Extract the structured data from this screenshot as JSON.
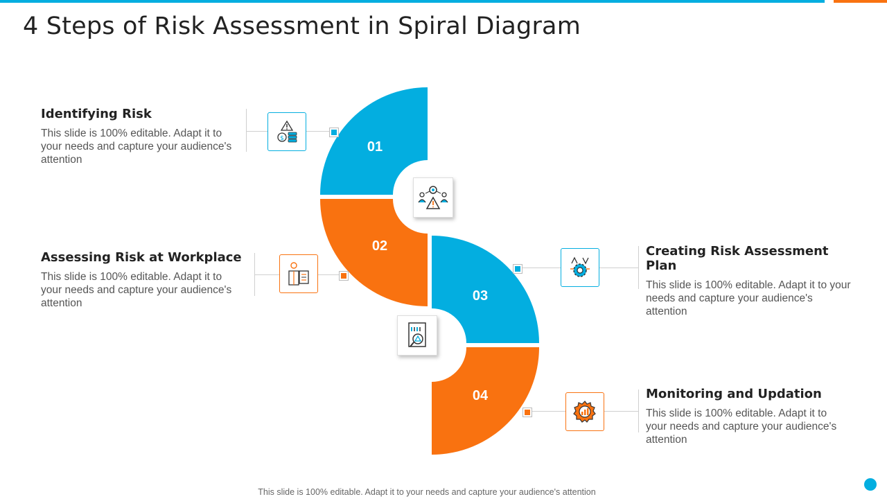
{
  "title": "4 Steps of Risk Assessment in Spiral Diagram",
  "colors": {
    "blue": "#03AEE0",
    "orange": "#F97210",
    "line": "#CFCFCF"
  },
  "steps": [
    {
      "number": "01",
      "color": "blue",
      "icon": "risk-money-icon",
      "title": "Identifying Risk",
      "text": "This slide is 100% editable. Adapt it to your needs and capture your audience's attention"
    },
    {
      "number": "02",
      "color": "orange",
      "icon": "workplace-checklist-icon",
      "title": "Assessing Risk at Workplace",
      "text": "This slide is 100% editable. Adapt it to your needs and capture your audience's attention"
    },
    {
      "number": "03",
      "color": "blue",
      "icon": "gear-arrows-icon",
      "title": "Creating Risk Assessment Plan",
      "text": "This slide is 100% editable. Adapt it to your needs and capture your audience's attention"
    },
    {
      "number": "04",
      "color": "orange",
      "icon": "gear-chart-icon",
      "title": "Monitoring and Updation",
      "text": "This slide is 100% editable. Adapt it to your needs and capture your audience's attention"
    }
  ],
  "center_icons": [
    "team-risk-icon",
    "risk-document-icon"
  ],
  "footer": "This slide is 100% editable. Adapt it to your needs and capture your audience's attention"
}
